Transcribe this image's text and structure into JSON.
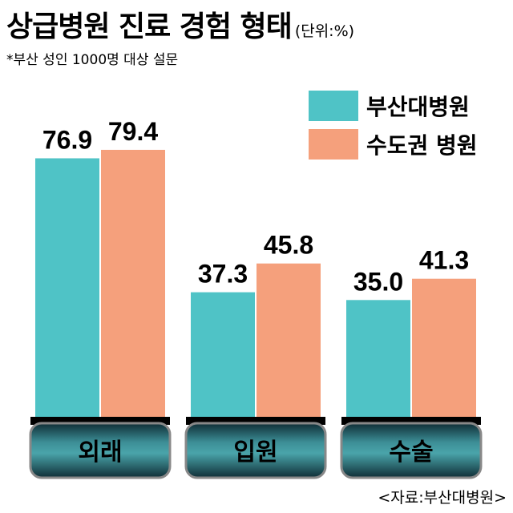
{
  "title": "상급병원 진료 경험 형태",
  "unit": "(단위:%)",
  "subtitle": "*부산 성인 1000명 대상 설문",
  "source": "<자료:부산대병원>",
  "colors": {
    "busan": "#4fc3c6",
    "capital": "#f5a07c",
    "label_bg": "#1e4a55"
  },
  "chart_data": {
    "type": "bar",
    "categories": [
      "외래",
      "입원",
      "수술"
    ],
    "series": [
      {
        "name": "부산대병원",
        "values": [
          76.9,
          37.3,
          35.0
        ]
      },
      {
        "name": "수도권 병원",
        "values": [
          79.4,
          45.8,
          41.3
        ]
      }
    ],
    "value_labels": [
      [
        "76.9",
        "37.3",
        "35.0"
      ],
      [
        "79.4",
        "45.8",
        "41.3"
      ]
    ],
    "ylim": [
      0,
      100
    ],
    "legend": "top-right",
    "grid": false
  }
}
